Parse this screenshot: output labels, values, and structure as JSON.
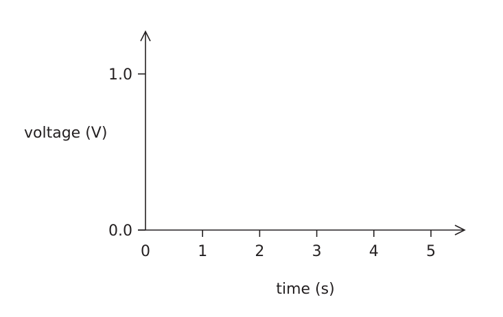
{
  "chart_data": {
    "type": "line",
    "title": "",
    "xlabel": "time (s)",
    "ylabel": "voltage (V)",
    "xlim": [
      0,
      5
    ],
    "ylim": [
      0.0,
      1.0
    ],
    "x_ticks": [
      "0",
      "1",
      "2",
      "3",
      "4",
      "5"
    ],
    "y_ticks": [
      "0.0",
      "1.0"
    ],
    "series": [],
    "grid": false,
    "arrowheads": true
  }
}
